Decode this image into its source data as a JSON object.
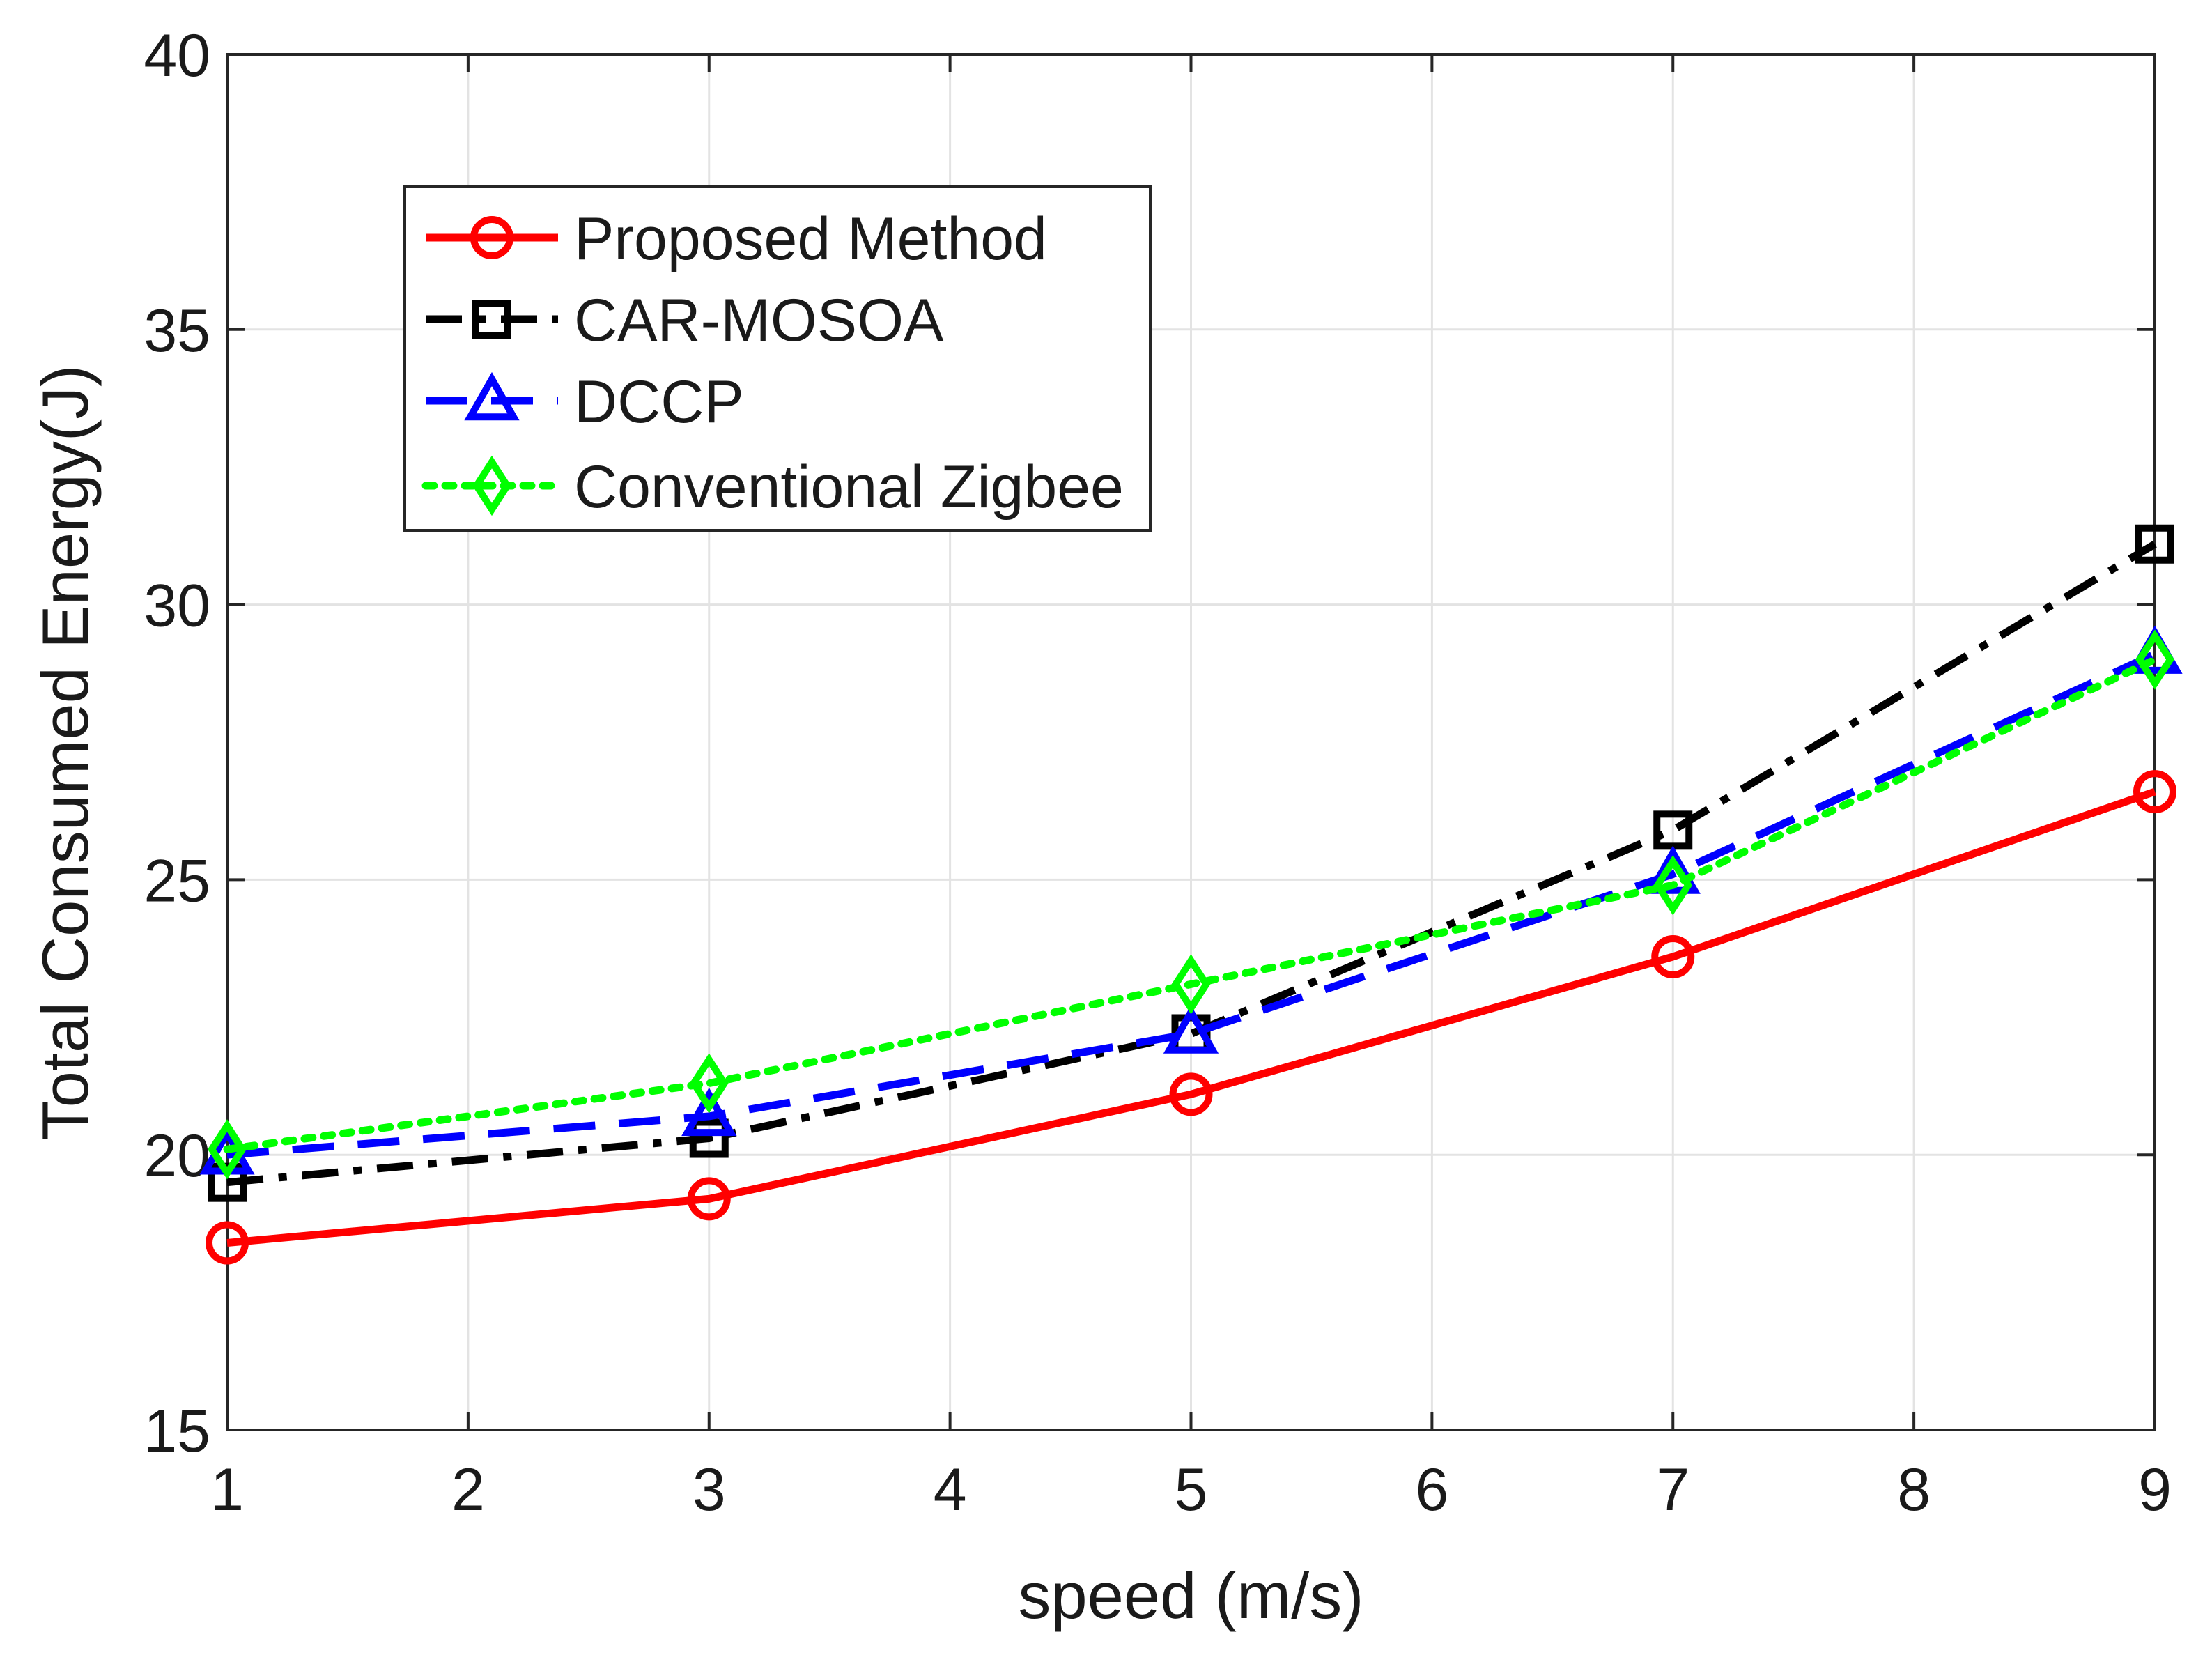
{
  "chart_data": {
    "type": "line",
    "title": "",
    "xlabel": "speed (m/s)",
    "ylabel": "Total Consumed Energy(J)",
    "xlim": [
      1,
      9
    ],
    "ylim": [
      15,
      40
    ],
    "xticks": [
      1,
      2,
      3,
      4,
      5,
      6,
      7,
      8,
      9
    ],
    "yticks": [
      15,
      20,
      25,
      30,
      35,
      40
    ],
    "grid": true,
    "legend_position": "top-left",
    "x": [
      1,
      3,
      5,
      7,
      9
    ],
    "series": [
      {
        "name": "Proposed Method",
        "values": [
          18.4,
          19.2,
          21.1,
          23.6,
          26.6
        ],
        "color": "#ff0000",
        "line": "solid",
        "marker": "circle"
      },
      {
        "name": "CAR-MOSOA",
        "values": [
          19.5,
          20.3,
          22.2,
          25.9,
          31.1
        ],
        "color": "#000000",
        "line": "dashdot",
        "marker": "square"
      },
      {
        "name": "DCCP",
        "values": [
          20.0,
          20.7,
          22.2,
          25.1,
          29.1
        ],
        "color": "#0000ff",
        "line": "dashed",
        "marker": "triangle"
      },
      {
        "name": "Conventional Zigbee",
        "values": [
          20.1,
          21.3,
          23.1,
          24.9,
          29.0
        ],
        "color": "#00ff00",
        "line": "dotted",
        "marker": "diamond"
      }
    ]
  }
}
